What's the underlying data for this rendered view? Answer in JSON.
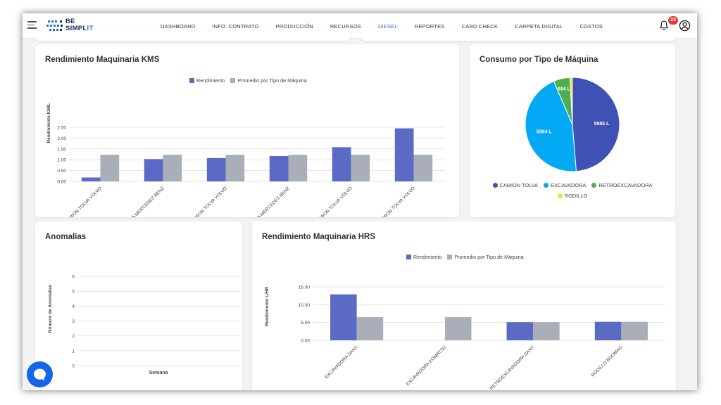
{
  "topbar": {
    "logo_line1": "BE",
    "logo_line2a": "SIMPL",
    "logo_line2b": "IT",
    "nav": [
      "DASHBOARD",
      "INFO. CONTRATO",
      "PRODUCCIÓN",
      "RECURSOS",
      "DIESEL",
      "REPORTES",
      "CARD CHECK",
      "CARPETA DIGITAL",
      "COSTOS"
    ],
    "active_nav": "DIESEL",
    "notification_count": "23"
  },
  "kms_chart": {
    "title": "Rendimiento Maquinaria KMS",
    "legend": [
      "Rendimiento",
      "Promedio por Tipo de Máquina"
    ],
    "ylabel": "Rendimiento KM/L",
    "yticks": [
      "0.00",
      "0.50",
      "1.00",
      "1.50",
      "2.00",
      "2.50"
    ]
  },
  "pie_chart": {
    "title": "Consumo por Tipo de Máquina",
    "legend": [
      "CAMION TOLVA",
      "EXCAVADORA",
      "RETROEXCAVADORA",
      "RODILLO"
    ]
  },
  "anomalias_chart": {
    "title": "Anomalías",
    "ylabel": "Número de Anomalías",
    "xlabel": "Semana",
    "yticks": [
      "0",
      "1",
      "2",
      "3",
      "4",
      "5",
      "6"
    ]
  },
  "hrs_chart": {
    "title": "Rendimiento Maquinaria HRS",
    "legend": [
      "Rendimiento",
      "Promedio por Tipo de Máquina"
    ],
    "ylabel": "Rendimiento L/HR",
    "yticks": [
      "0.00",
      "5.00",
      "10.00",
      "15.00"
    ]
  },
  "colors": {
    "rendimiento": "#5b6ac4",
    "promedio": "#a9aeb8",
    "camion_tolva": "#3f51b5",
    "excavadora": "#03a9f4",
    "retroexcavadora": "#4caf50",
    "rodillo": "#fdd835",
    "active_nav": "#3a6fd8"
  },
  "chart_data": [
    {
      "type": "bar",
      "title": "Rendimiento Maquinaria KMS",
      "ylabel": "Rendimiento KM/L",
      "xlabel": "",
      "ylim": [
        0,
        2.5
      ],
      "categories": [
        "CAMION TOLVA VOLVO",
        "CAMION TOLVA MERCEDES BENZ",
        "CAMION TOLVA VOLVO",
        "CAMION TOLVA MERCEDES BENZ",
        "CAMION TOLVA VOLVO",
        "CAMION TOLVA VOLVO"
      ],
      "series": [
        {
          "name": "Rendimiento",
          "values": [
            0.18,
            1.03,
            1.08,
            1.17,
            1.58,
            2.45
          ]
        },
        {
          "name": "Promedio por Tipo de Máquina",
          "values": [
            1.23,
            1.23,
            1.23,
            1.23,
            1.23,
            1.23
          ]
        }
      ],
      "legend": "top-center",
      "grid": true
    },
    {
      "type": "pie",
      "title": "Consumo por Tipo de Máquina",
      "labels": [
        "CAMION TOLVA",
        "EXCAVADORA",
        "RETROEXCAVADORA",
        "RODILLO"
      ],
      "values": [
        5985,
        5504,
        694,
        105
      ],
      "value_labels": [
        "5985 L",
        "5504 L",
        "694 L",
        ""
      ],
      "legend": "bottom"
    },
    {
      "type": "bar",
      "title": "Anomalías",
      "ylabel": "Número de Anomalías",
      "xlabel": "Semana",
      "ylim": [
        0,
        6
      ],
      "categories": [],
      "values": [],
      "grid": true
    },
    {
      "type": "bar",
      "title": "Rendimiento Maquinaria HRS",
      "ylabel": "Rendimiento L/HR",
      "xlabel": "",
      "ylim": [
        0,
        15
      ],
      "categories": [
        "EXCAVADORA SANY",
        "EXCAVADORA KOMATSU",
        "RETROEXCAVADORA SANY",
        "RODILLO BOOMAG"
      ],
      "series": [
        {
          "name": "Rendimiento",
          "values": [
            12.9,
            0,
            5.1,
            5.2
          ]
        },
        {
          "name": "Promedio por Tipo de Máquina",
          "values": [
            6.5,
            6.5,
            5.1,
            5.2
          ]
        }
      ],
      "legend": "top-center",
      "grid": true
    }
  ]
}
